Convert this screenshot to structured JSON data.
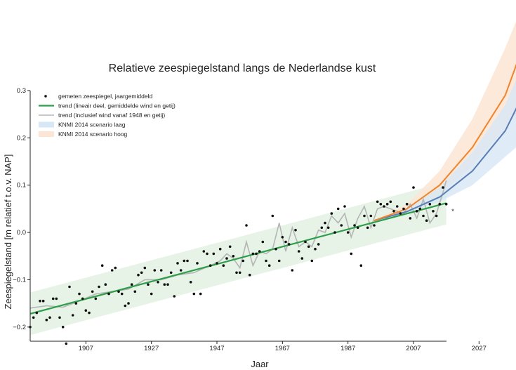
{
  "chart_data": {
    "type": "line",
    "title": "Relatieve zeespiegelstand langs de Nederlandse kust",
    "xlabel": "Jaar",
    "ylabel": "Zeespiegelstand  [m relatief t.o.v. NAP]",
    "xlim": [
      1890,
      2040
    ],
    "ylim": [
      -0.23,
      0.3
    ],
    "x_ticks": [
      1907,
      1927,
      1947,
      1967,
      1987,
      2007,
      2027
    ],
    "y_ticks": [
      -0.2,
      -0.1,
      0.0,
      0.1,
      0.2,
      0.3
    ],
    "y_tick_labels": [
      "−0.2",
      "−0.1",
      "0.0",
      "0.1",
      "0.2",
      "0.3"
    ],
    "grid": false,
    "legend_position": "top-left",
    "legend": [
      {
        "key": "observed",
        "label": "gemeten zeespiegel, jaargemiddeld"
      },
      {
        "key": "linear_trend",
        "label": "trend (lineair deel, gemiddelde wind en getij)"
      },
      {
        "key": "wind_trend",
        "label": "trend (inclusief wind vanaf 1948 en getij)"
      },
      {
        "key": "scenario_low",
        "label": "KNMI 2014 scenario laag"
      },
      {
        "key": "scenario_high",
        "label": "KNMI 2014 scenario hoog"
      }
    ],
    "colors": {
      "observed": "#111111",
      "linear_trend": "#2e9e4a",
      "linear_band": "#e6f3e6",
      "wind_trend": "#b5b5b5",
      "scenario_low_line": "#5a7fb5",
      "scenario_low_band": "#d7e7f5",
      "scenario_high_line": "#f0842c",
      "scenario_high_band": "#fce5d4"
    },
    "observed": {
      "x": [
        1890,
        1891,
        1892,
        1893,
        1894,
        1895,
        1896,
        1897,
        1898,
        1899,
        1900,
        1901,
        1902,
        1903,
        1904,
        1905,
        1906,
        1907,
        1908,
        1909,
        1910,
        1911,
        1912,
        1913,
        1914,
        1915,
        1916,
        1917,
        1918,
        1919,
        1920,
        1921,
        1922,
        1923,
        1924,
        1925,
        1926,
        1927,
        1928,
        1929,
        1930,
        1931,
        1932,
        1933,
        1934,
        1935,
        1936,
        1937,
        1938,
        1939,
        1940,
        1941,
        1942,
        1943,
        1944,
        1945,
        1946,
        1947,
        1948,
        1949,
        1950,
        1951,
        1952,
        1953,
        1954,
        1955,
        1956,
        1957,
        1958,
        1959,
        1960,
        1961,
        1962,
        1963,
        1964,
        1965,
        1966,
        1967,
        1968,
        1969,
        1970,
        1971,
        1972,
        1973,
        1974,
        1975,
        1976,
        1977,
        1978,
        1979,
        1980,
        1981,
        1982,
        1983,
        1984,
        1985,
        1986,
        1987,
        1988,
        1989,
        1990,
        1991,
        1992,
        1993,
        1994,
        1995,
        1996,
        1997,
        1998,
        1999,
        2000,
        2001,
        2002,
        2003,
        2004,
        2005,
        2006,
        2007,
        2008,
        2009,
        2010,
        2011,
        2012,
        2013,
        2014,
        2015,
        2016,
        2017
      ],
      "y": [
        -0.2,
        -0.18,
        -0.17,
        -0.145,
        -0.145,
        -0.185,
        -0.18,
        -0.14,
        -0.14,
        -0.18,
        -0.2,
        -0.235,
        -0.115,
        -0.175,
        -0.15,
        -0.13,
        -0.14,
        -0.165,
        -0.17,
        -0.125,
        -0.14,
        -0.115,
        -0.07,
        -0.11,
        -0.13,
        -0.08,
        -0.075,
        -0.125,
        -0.13,
        -0.155,
        -0.15,
        -0.11,
        -0.125,
        -0.09,
        -0.085,
        -0.075,
        -0.11,
        -0.13,
        -0.08,
        -0.105,
        -0.08,
        -0.11,
        -0.11,
        -0.085,
        -0.135,
        -0.065,
        -0.08,
        -0.06,
        -0.06,
        -0.105,
        -0.13,
        -0.065,
        -0.13,
        -0.04,
        -0.045,
        -0.07,
        -0.045,
        -0.065,
        -0.035,
        -0.07,
        -0.055,
        -0.03,
        -0.05,
        -0.085,
        -0.085,
        -0.06,
        0.015,
        -0.09,
        -0.045,
        -0.045,
        -0.04,
        -0.02,
        -0.06,
        -0.07,
        0.035,
        -0.035,
        -0.06,
        -0.01,
        -0.02,
        -0.025,
        -0.08,
        0.005,
        -0.04,
        -0.055,
        -0.02,
        -0.03,
        -0.06,
        -0.035,
        -0.025,
        0.01,
        0.02,
        0.01,
        0.04,
        0.0,
        0.05,
        0.015,
        0.055,
        0.0,
        -0.045,
        0.015,
        0.01,
        -0.07,
        0.035,
        0.01,
        0.035,
        0.015,
        0.065,
        0.06,
        0.055,
        0.06,
        0.065,
        0.045,
        0.055,
        0.04,
        0.05,
        0.06,
        0.03,
        0.095,
        0.045,
        0.05,
        0.035,
        0.025,
        0.06,
        0.045,
        0.035,
        0.06,
        0.095,
        0.06
      ]
    },
    "linear_trend": {
      "x": [
        1890,
        2017
      ],
      "y": [
        -0.172,
        0.062
      ],
      "band_half_width": 0.045
    },
    "wind_trend": {
      "x": [
        1890,
        1895,
        1900,
        1905,
        1910,
        1915,
        1920,
        1925,
        1930,
        1935,
        1940,
        1945,
        1948,
        1950,
        1952,
        1954,
        1956,
        1958,
        1960,
        1962,
        1964,
        1966,
        1968,
        1970,
        1972,
        1974,
        1976,
        1978,
        1980,
        1982,
        1984,
        1986,
        1988,
        1990,
        1992,
        1994,
        1996,
        1998,
        2000,
        2002,
        2004,
        2006,
        2008,
        2010,
        2012,
        2014,
        2016,
        2017
      ],
      "y": [
        -0.16,
        -0.155,
        -0.158,
        -0.145,
        -0.13,
        -0.125,
        -0.12,
        -0.1,
        -0.1,
        -0.09,
        -0.085,
        -0.07,
        -0.06,
        -0.045,
        -0.055,
        -0.075,
        -0.02,
        -0.07,
        -0.04,
        -0.045,
        -0.035,
        0.02,
        -0.04,
        0.01,
        -0.03,
        -0.02,
        -0.03,
        0.005,
        0.0,
        0.035,
        0.02,
        0.04,
        -0.01,
        0.03,
        0.055,
        0.01,
        0.05,
        0.055,
        0.05,
        0.045,
        0.04,
        0.06,
        0.03,
        0.07,
        0.02,
        0.04,
        0.085,
        0.11
      ]
    },
    "scenario_low": {
      "x": [
        1995,
        2005,
        2015,
        2025,
        2035,
        2040
      ],
      "y": [
        0.025,
        0.044,
        0.075,
        0.13,
        0.215,
        0.285
      ],
      "lower": [
        0.025,
        0.04,
        0.065,
        0.1,
        0.16,
        0.19
      ],
      "upper": [
        0.025,
        0.05,
        0.095,
        0.17,
        0.27,
        0.35
      ]
    },
    "scenario_high": {
      "x": [
        1995,
        2005,
        2015,
        2025,
        2035,
        2040
      ],
      "y": [
        0.025,
        0.05,
        0.1,
        0.18,
        0.29,
        0.385
      ],
      "lower": [
        0.025,
        0.045,
        0.08,
        0.14,
        0.22,
        0.265
      ],
      "upper": [
        0.025,
        0.06,
        0.13,
        0.24,
        0.39,
        0.475
      ]
    },
    "annotations": [
      {
        "key": "mean_2017",
        "x": 2019,
        "y": 0.04,
        "text": "*"
      }
    ]
  }
}
